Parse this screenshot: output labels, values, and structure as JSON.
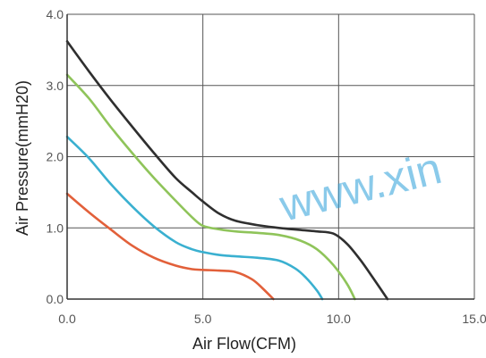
{
  "chart_data": {
    "type": "line",
    "title": "",
    "xlabel": "Air Flow(CFM)",
    "ylabel": "Air Pressure(mmH20)",
    "xlim": [
      0,
      15
    ],
    "ylim": [
      0,
      4
    ],
    "xticks": [
      0,
      5,
      10,
      15
    ],
    "yticks": [
      0,
      1,
      2,
      3,
      4
    ],
    "xtick_labels": [
      "0.0",
      "5.0",
      "10.0",
      "15.0"
    ],
    "ytick_labels": [
      "0.0",
      "1.0",
      "2.0",
      "3.0",
      "4.0"
    ],
    "grid": true,
    "legend": "none",
    "series": [
      {
        "color": "#2f2f2f",
        "x": [
          0.0,
          0.8,
          1.6,
          2.4,
          3.2,
          4.0,
          4.6,
          5.0,
          5.6,
          6.2,
          7.0,
          7.8,
          8.6,
          9.2,
          9.8,
          10.3,
          10.8,
          11.3,
          11.8
        ],
        "y": [
          3.62,
          3.2,
          2.8,
          2.42,
          2.05,
          1.7,
          1.5,
          1.37,
          1.2,
          1.1,
          1.04,
          1.0,
          0.97,
          0.95,
          0.92,
          0.78,
          0.55,
          0.28,
          0.0
        ]
      },
      {
        "color": "#8fc45a",
        "x": [
          0.0,
          0.8,
          1.6,
          2.4,
          3.2,
          4.0,
          4.6,
          5.0,
          5.6,
          6.2,
          7.0,
          7.8,
          8.6,
          9.2,
          9.8,
          10.3,
          10.6
        ],
        "y": [
          3.15,
          2.82,
          2.42,
          2.05,
          1.7,
          1.38,
          1.15,
          1.03,
          0.98,
          0.95,
          0.93,
          0.9,
          0.82,
          0.7,
          0.48,
          0.22,
          0.0
        ]
      },
      {
        "color": "#3ab0d0",
        "x": [
          0.0,
          0.8,
          1.6,
          2.4,
          3.2,
          4.0,
          4.6,
          5.0,
          5.6,
          6.2,
          7.0,
          7.8,
          8.4,
          8.8,
          9.2,
          9.4
        ],
        "y": [
          2.28,
          1.98,
          1.62,
          1.3,
          1.02,
          0.8,
          0.7,
          0.66,
          0.62,
          0.6,
          0.58,
          0.54,
          0.43,
          0.3,
          0.12,
          0.0
        ]
      },
      {
        "color": "#e2603a",
        "x": [
          0.0,
          0.8,
          1.6,
          2.4,
          3.2,
          4.0,
          4.6,
          5.0,
          5.6,
          6.2,
          6.8,
          7.2,
          7.6
        ],
        "y": [
          1.48,
          1.22,
          0.98,
          0.75,
          0.58,
          0.47,
          0.42,
          0.41,
          0.4,
          0.38,
          0.28,
          0.15,
          0.0
        ]
      }
    ]
  },
  "watermark": "www.xin"
}
